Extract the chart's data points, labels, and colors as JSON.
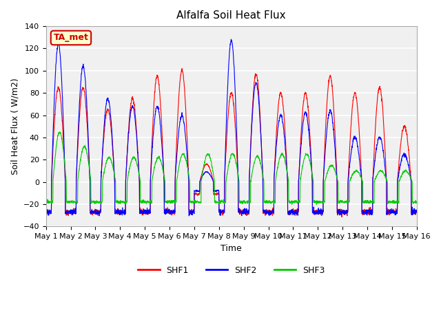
{
  "title": "Alfalfa Soil Heat Flux",
  "xlabel": "Time",
  "ylabel": "Soil Heat Flux ( W/m2)",
  "ylim": [
    -40,
    140
  ],
  "xlim": [
    0,
    15
  ],
  "xtick_labels": [
    "May 1",
    "May 2",
    "May 3",
    "May 4",
    "May 5",
    "May 6",
    "May 7",
    "May 8",
    "May 9",
    "May 10",
    "May 11",
    "May 12",
    "May 13",
    "May 14",
    "May 15",
    "May 16"
  ],
  "ytick_values": [
    -40,
    -20,
    0,
    20,
    40,
    60,
    80,
    100,
    120,
    140
  ],
  "colors": {
    "SHF1": "#ff0000",
    "SHF2": "#0000ff",
    "SHF3": "#00cc00"
  },
  "annotation_text": "TA_met",
  "annotation_color": "#cc0000",
  "annotation_bg": "#ffffcc",
  "bg_color": "#e8e8e8",
  "plot_bg": "#f0f0f0",
  "legend_labels": [
    "SHF1",
    "SHF2",
    "SHF3"
  ]
}
